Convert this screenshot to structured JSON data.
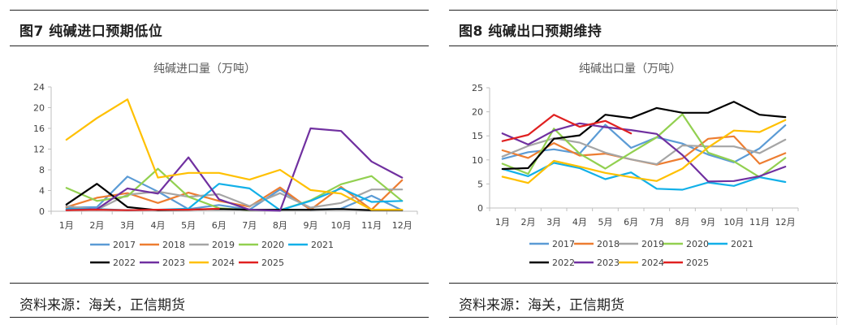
{
  "panels": [
    {
      "title": "图7  纯碱进口预期低位",
      "source": "资料来源：海关，正信期货"
    },
    {
      "title": "图8  纯碱出口预期维持",
      "source": "资料来源：海关，正信期货"
    }
  ],
  "colors": {
    "2017": "#5b9bd5",
    "2018": "#ed7d31",
    "2019": "#a5a5a5",
    "2020": "#92d050",
    "2021": "#12b0e8",
    "2022": "#000000",
    "2023": "#7030a0",
    "2024": "#ffc000",
    "2025": "#e02020"
  },
  "chart_data": [
    {
      "type": "line",
      "title": "纯碱进口量（万吨）",
      "categories": [
        "1月",
        "2月",
        "3月",
        "4月",
        "5月",
        "6月",
        "7月",
        "8月",
        "9月",
        "10月",
        "11月",
        "12月"
      ],
      "ylim": [
        0,
        24
      ],
      "yticks": [
        0,
        4,
        8,
        12,
        16,
        20,
        24
      ],
      "grid": false,
      "legend": "bottom",
      "series": [
        {
          "name": "2017",
          "values": [
            0.7,
            0.8,
            6.7,
            3.8,
            0.4,
            1.2,
            0.3,
            4.2,
            0.3,
            0.5,
            3.0,
            0.2
          ]
        },
        {
          "name": "2018",
          "values": [
            0.8,
            2.6,
            3.5,
            1.6,
            3.6,
            2.0,
            0.9,
            4.6,
            0.3,
            4.7,
            0.3,
            6.0
          ]
        },
        {
          "name": "2019",
          "values": [
            1.0,
            0.3,
            3.2,
            3.8,
            2.8,
            3.3,
            1.0,
            3.5,
            0.7,
            1.6,
            4.2,
            4.2
          ]
        },
        {
          "name": "2020",
          "values": [
            4.5,
            2.0,
            2.9,
            8.2,
            2.8,
            0.6,
            0.2,
            0.2,
            2.1,
            5.2,
            6.8,
            2.0
          ]
        },
        {
          "name": "2021",
          "values": [
            0.4,
            0.4,
            0.2,
            0.3,
            0.5,
            5.3,
            4.4,
            0.2,
            2.0,
            4.4,
            1.8,
            2.0
          ]
        },
        {
          "name": "2022",
          "values": [
            1.3,
            5.3,
            0.8,
            0.2,
            0.3,
            0.4,
            0.3,
            0.3,
            0.3,
            0.4,
            0.2,
            0.2
          ]
        },
        {
          "name": "2023",
          "values": [
            0.2,
            0.4,
            4.4,
            3.4,
            10.4,
            2.3,
            0.3,
            0.1,
            16.0,
            15.5,
            9.6,
            6.5
          ]
        },
        {
          "name": "2024",
          "values": [
            13.8,
            18.0,
            21.6,
            6.5,
            7.4,
            7.4,
            6.1,
            8.0,
            4.1,
            3.4,
            0.3,
            0.3
          ]
        },
        {
          "name": "2025",
          "values": [
            0.2,
            0.3,
            0.2,
            0.3,
            0.3,
            0.5,
            null,
            null,
            null,
            null,
            null,
            null
          ]
        }
      ]
    },
    {
      "type": "line",
      "title": "纯碱出口量（万吨）",
      "categories": [
        "1月",
        "2月",
        "3月",
        "4月",
        "5月",
        "6月",
        "7月",
        "8月",
        "9月",
        "10月",
        "11月",
        "12月"
      ],
      "ylim": [
        0,
        25
      ],
      "yticks": [
        0,
        5,
        10,
        15,
        20,
        25
      ],
      "grid": false,
      "legend": "bottom",
      "series": [
        {
          "name": "2017",
          "values": [
            10.2,
            11.6,
            12.2,
            11.3,
            17.3,
            12.5,
            14.7,
            13.4,
            11.1,
            9.5,
            12.4,
            17.2
          ]
        },
        {
          "name": "2018",
          "values": [
            12.0,
            10.4,
            13.5,
            10.9,
            11.3,
            10.1,
            9.0,
            10.3,
            14.4,
            14.9,
            9.2,
            11.4
          ]
        },
        {
          "name": "2019",
          "values": [
            10.7,
            12.9,
            14.5,
            13.6,
            11.5,
            10.1,
            9.1,
            13.0,
            12.8,
            12.8,
            11.4,
            14.2
          ]
        },
        {
          "name": "2020",
          "values": [
            9.2,
            7.1,
            16.5,
            11.3,
            8.2,
            11.5,
            14.7,
            19.5,
            11.5,
            9.7,
            6.4,
            10.4
          ]
        },
        {
          "name": "2021",
          "values": [
            8.1,
            6.6,
            9.4,
            8.3,
            6.0,
            7.4,
            4.0,
            3.8,
            5.3,
            4.6,
            6.4,
            5.4
          ]
        },
        {
          "name": "2022",
          "values": [
            8.1,
            8.3,
            14.4,
            15.1,
            19.4,
            18.7,
            20.8,
            19.8,
            19.8,
            22.1,
            19.4,
            18.9
          ]
        },
        {
          "name": "2023",
          "values": [
            15.5,
            13.2,
            16.1,
            17.6,
            16.8,
            16.2,
            15.4,
            11.0,
            5.5,
            5.6,
            6.6,
            8.6
          ]
        },
        {
          "name": "2024",
          "values": [
            6.5,
            5.2,
            9.8,
            8.6,
            7.3,
            6.4,
            5.6,
            8.2,
            12.6,
            16.1,
            15.8,
            18.3
          ]
        },
        {
          "name": "2025",
          "values": [
            13.9,
            15.2,
            19.4,
            16.9,
            18.1,
            15.5,
            null,
            null,
            null,
            null,
            null,
            null
          ]
        }
      ]
    }
  ]
}
